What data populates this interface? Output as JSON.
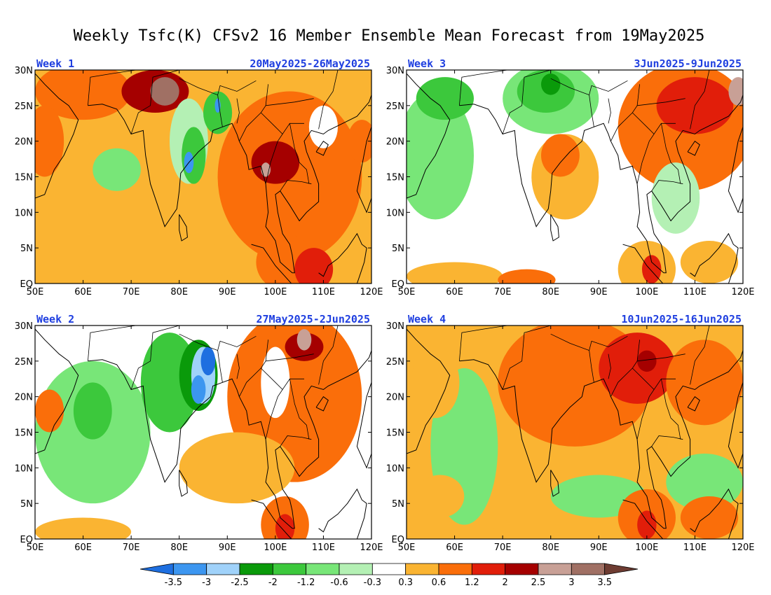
{
  "title": "Weekly Tsfc(K) CFSv2 16 Member Ensemble Mean Forecast from 19May2025",
  "map": {
    "lon_range": [
      50,
      120
    ],
    "lat_range": [
      0,
      30
    ],
    "lon_labels": [
      "50E",
      "60E",
      "70E",
      "80E",
      "90E",
      "100E",
      "110E",
      "120E"
    ],
    "lat_labels": [
      "EQ",
      "5N",
      "10N",
      "15N",
      "20N",
      "25N",
      "30N"
    ]
  },
  "panels": [
    {
      "week_label": "Week 1",
      "dates": "20May2025-26May2025",
      "blobs": [
        {
          "lon": 60,
          "lat": 27,
          "rx": 10,
          "ry": 4,
          "level": 1.2
        },
        {
          "lon": 52,
          "lat": 20,
          "rx": 4,
          "ry": 5,
          "level": 1.2
        },
        {
          "lon": 75,
          "lat": 27,
          "rx": 7,
          "ry": 3,
          "level": 2.5
        },
        {
          "lon": 77,
          "lat": 27,
          "rx": 3,
          "ry": 2,
          "level": 3.5
        },
        {
          "lon": 82,
          "lat": 20,
          "rx": 4,
          "ry": 6,
          "level": -0.3
        },
        {
          "lon": 83,
          "lat": 18,
          "rx": 2.5,
          "ry": 4,
          "level": -1.2
        },
        {
          "lon": 82,
          "lat": 17,
          "rx": 1,
          "ry": 1.5,
          "level": -3
        },
        {
          "lon": 88,
          "lat": 24,
          "rx": 3,
          "ry": 3,
          "level": -1.2
        },
        {
          "lon": 88,
          "lat": 25,
          "rx": 0.6,
          "ry": 1,
          "level": -3
        },
        {
          "lon": 103,
          "lat": 15,
          "rx": 15,
          "ry": 12,
          "level": 1.2
        },
        {
          "lon": 100,
          "lat": 17,
          "rx": 5,
          "ry": 3,
          "level": 2.5
        },
        {
          "lon": 98,
          "lat": 16,
          "rx": 1,
          "ry": 1,
          "level": 3
        },
        {
          "lon": 118,
          "lat": 20,
          "rx": 3,
          "ry": 3,
          "level": 1.2
        },
        {
          "lon": 67,
          "lat": 16,
          "rx": 5,
          "ry": 3,
          "level": -0.6
        },
        {
          "lon": 102,
          "lat": 3,
          "rx": 6,
          "ry": 4,
          "level": 1.2
        },
        {
          "lon": 108,
          "lat": 2,
          "rx": 4,
          "ry": 3,
          "level": 2
        },
        {
          "lon": 110,
          "lat": 22,
          "rx": 3,
          "ry": 3,
          "level": 0.3
        },
        {
          "lon": 55,
          "lat": 1,
          "rx": 6,
          "ry": 2,
          "level": 0.6
        },
        {
          "lon": 84,
          "lat": 3,
          "rx": 6,
          "ry": 3,
          "level": 0.6
        }
      ]
    },
    {
      "week_label": "Week 3",
      "dates": "3Jun2025-9Jun2025",
      "blobs": [
        {
          "lon": 56,
          "lat": 18,
          "rx": 8,
          "ry": 9,
          "level": -0.6
        },
        {
          "lon": 58,
          "lat": 26,
          "rx": 6,
          "ry": 3,
          "level": -1.2
        },
        {
          "lon": 80,
          "lat": 26,
          "rx": 10,
          "ry": 5,
          "level": -0.6
        },
        {
          "lon": 79,
          "lat": 27,
          "rx": 6,
          "ry": 3,
          "level": -1.2
        },
        {
          "lon": 80,
          "lat": 28,
          "rx": 2,
          "ry": 1.5,
          "level": -2
        },
        {
          "lon": 108,
          "lat": 22,
          "rx": 14,
          "ry": 9,
          "level": 1.2
        },
        {
          "lon": 110,
          "lat": 25,
          "rx": 8,
          "ry": 4,
          "level": 2
        },
        {
          "lon": 119,
          "lat": 27,
          "rx": 2,
          "ry": 2,
          "level": 3
        },
        {
          "lon": 83,
          "lat": 15,
          "rx": 7,
          "ry": 6,
          "level": 0.6
        },
        {
          "lon": 82,
          "lat": 18,
          "rx": 4,
          "ry": 3,
          "level": 1.2
        },
        {
          "lon": 100,
          "lat": 2,
          "rx": 6,
          "ry": 4,
          "level": 0.6
        },
        {
          "lon": 101,
          "lat": 2,
          "rx": 2,
          "ry": 2,
          "level": 2
        },
        {
          "lon": 113,
          "lat": 3,
          "rx": 6,
          "ry": 3,
          "level": 0.6
        },
        {
          "lon": 60,
          "lat": 1,
          "rx": 10,
          "ry": 2,
          "level": 0.6
        },
        {
          "lon": 75,
          "lat": 0.5,
          "rx": 6,
          "ry": 1.5,
          "level": 1.2
        },
        {
          "lon": 106,
          "lat": 12,
          "rx": 5,
          "ry": 5,
          "level": -0.3
        }
      ]
    },
    {
      "week_label": "Week 2",
      "dates": "27May2025-2Jun2025",
      "blobs": [
        {
          "lon": 62,
          "lat": 15,
          "rx": 12,
          "ry": 10,
          "level": -0.6
        },
        {
          "lon": 62,
          "lat": 18,
          "rx": 4,
          "ry": 4,
          "level": -1.2
        },
        {
          "lon": 78,
          "lat": 22,
          "rx": 6,
          "ry": 7,
          "level": -1.2
        },
        {
          "lon": 84,
          "lat": 23,
          "rx": 4,
          "ry": 5,
          "level": -2
        },
        {
          "lon": 85,
          "lat": 23,
          "rx": 2.5,
          "ry": 4,
          "level": -2.5
        },
        {
          "lon": 84,
          "lat": 21,
          "rx": 1.5,
          "ry": 2,
          "level": -3
        },
        {
          "lon": 86,
          "lat": 25,
          "rx": 1.5,
          "ry": 2,
          "level": -3.5
        },
        {
          "lon": 104,
          "lat": 20,
          "rx": 14,
          "ry": 12,
          "level": 1.2
        },
        {
          "lon": 106,
          "lat": 27,
          "rx": 4,
          "ry": 2,
          "level": 2.5
        },
        {
          "lon": 106,
          "lat": 28,
          "rx": 1.5,
          "ry": 1.5,
          "level": 3
        },
        {
          "lon": 102,
          "lat": 2,
          "rx": 5,
          "ry": 4,
          "level": 1.2
        },
        {
          "lon": 102,
          "lat": 1.5,
          "rx": 2,
          "ry": 2,
          "level": 2
        },
        {
          "lon": 53,
          "lat": 18,
          "rx": 3,
          "ry": 3,
          "level": 1.2
        },
        {
          "lon": 92,
          "lat": 10,
          "rx": 12,
          "ry": 5,
          "level": 0.6
        },
        {
          "lon": 100,
          "lat": 22,
          "rx": 3,
          "ry": 5,
          "level": 0.3
        },
        {
          "lon": 60,
          "lat": 1,
          "rx": 10,
          "ry": 2,
          "level": 0.6
        }
      ]
    },
    {
      "week_label": "Week 4",
      "dates": "10Jun2025-16Jun2025",
      "blobs": [
        {
          "lon": 62,
          "lat": 13,
          "rx": 7,
          "ry": 11,
          "level": -0.6
        },
        {
          "lon": 85,
          "lat": 22,
          "rx": 16,
          "ry": 9,
          "level": 1.2
        },
        {
          "lon": 98,
          "lat": 24,
          "rx": 8,
          "ry": 5,
          "level": 2
        },
        {
          "lon": 100,
          "lat": 25,
          "rx": 2,
          "ry": 1.5,
          "level": 2.5
        },
        {
          "lon": 112,
          "lat": 22,
          "rx": 8,
          "ry": 6,
          "level": 1.2
        },
        {
          "lon": 112,
          "lat": 8,
          "rx": 8,
          "ry": 4,
          "level": -0.6
        },
        {
          "lon": 90,
          "lat": 6,
          "rx": 10,
          "ry": 3,
          "level": -0.6
        },
        {
          "lon": 100,
          "lat": 3,
          "rx": 6,
          "ry": 4,
          "level": 1.2
        },
        {
          "lon": 100,
          "lat": 2,
          "rx": 2,
          "ry": 2,
          "level": 2
        },
        {
          "lon": 113,
          "lat": 3,
          "rx": 6,
          "ry": 3,
          "level": 1.2
        },
        {
          "lon": 56,
          "lat": 22,
          "rx": 5,
          "ry": 5,
          "level": 0.6
        },
        {
          "lon": 57,
          "lat": 6,
          "rx": 5,
          "ry": 3,
          "level": 0.6
        },
        {
          "lon": 75,
          "lat": 1,
          "rx": 7,
          "ry": 2,
          "level": 0.6
        }
      ]
    }
  ],
  "panel_background_level": [
    0.6,
    0.3,
    0.3,
    0.6
  ],
  "colorbar": {
    "colors": [
      "#1e6fe0",
      "#3c96f0",
      "#a0d2fa",
      "#0a9a0a",
      "#3cc83c",
      "#78e678",
      "#b4f0b4",
      "#ffffff",
      "#fab432",
      "#fa6e0a",
      "#e11e0a",
      "#a50000",
      "#c8a096",
      "#a07064",
      "#6e3c32"
    ],
    "labels": [
      "-3.5",
      "-3",
      "-2.5",
      "-2",
      "-1.2",
      "-0.6",
      "-0.3",
      "0.3",
      "0.6",
      "1.2",
      "2",
      "2.5",
      "3",
      "3.5"
    ]
  },
  "level_colors": {
    "-3.5": "#1e6fe0",
    "-3": "#3c96f0",
    "-2.5": "#a0d2fa",
    "-2": "#0a9a0a",
    "-1.2": "#3cc83c",
    "-0.6": "#78e678",
    "-0.3": "#b4f0b4",
    "0.3": "#ffffff",
    "0.6": "#fab432",
    "1.2": "#fa6e0a",
    "2": "#e11e0a",
    "2.5": "#a50000",
    "3": "#c8a096",
    "3.5": "#a07064"
  }
}
